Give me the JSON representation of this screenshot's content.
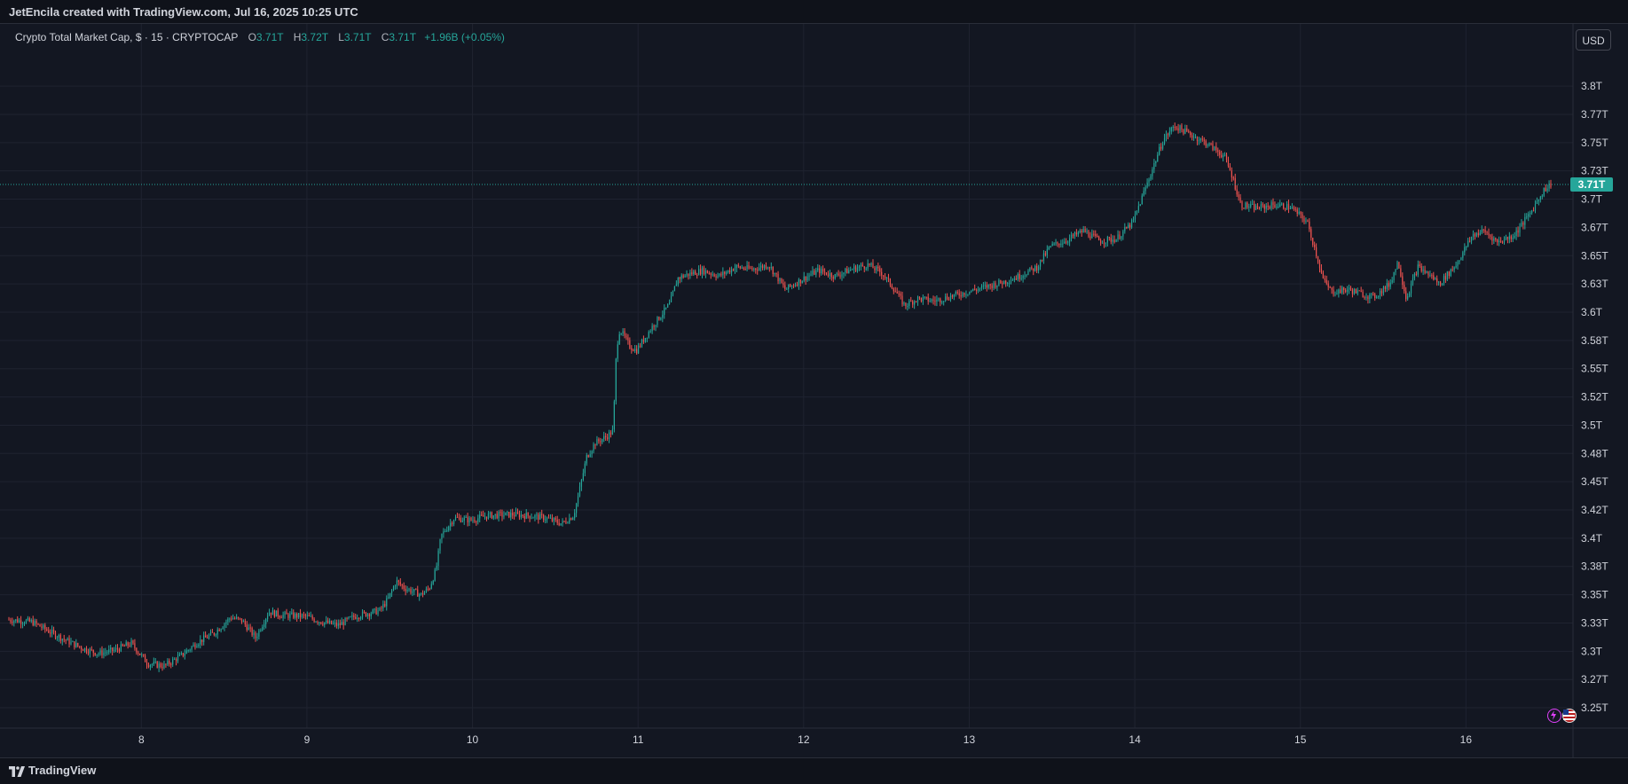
{
  "header": {
    "attribution": "JetEncila created with TradingView.com, Jul 16, 2025 10:25 UTC"
  },
  "legend": {
    "title": "Crypto Total Market Cap, $ · 15 · CRYPTOCAP",
    "open_label": "O",
    "open_value": "3.71T",
    "high_label": "H",
    "high_value": "3.72T",
    "low_label": "L",
    "low_value": "3.71T",
    "close_label": "C",
    "close_value": "3.71T",
    "change": "+1.96B (+0.05%)"
  },
  "currency_button": "USD",
  "last_price_label": "3.71T",
  "footer": {
    "brand": "TradingView"
  },
  "icons": {
    "brand_logo": "tradingview-logo-icon",
    "lightning": "lightning-icon",
    "flag": "us-flag-icon"
  },
  "colors": {
    "up": "#26a69a",
    "down": "#ef5350",
    "background": "#131722",
    "grid": "#232733",
    "last_price_line": "#26a69a"
  },
  "chart_data": {
    "type": "candlestick",
    "interval": "15",
    "symbol": "CRYPTOCAP",
    "y_tick_labels": [
      "3.8T",
      "3.77T",
      "3.75T",
      "3.73T",
      "3.7T",
      "3.67T",
      "3.65T",
      "3.63T",
      "3.6T",
      "3.58T",
      "3.55T",
      "3.52T",
      "3.5T",
      "3.48T",
      "3.45T",
      "3.42T",
      "3.4T",
      "3.38T",
      "3.35T",
      "3.33T",
      "3.3T",
      "3.27T",
      "3.25T"
    ],
    "y_tick_values": [
      3.8,
      3.775,
      3.75,
      3.725,
      3.7,
      3.675,
      3.65,
      3.625,
      3.6,
      3.575,
      3.55,
      3.525,
      3.5,
      3.475,
      3.45,
      3.425,
      3.4,
      3.375,
      3.35,
      3.325,
      3.3,
      3.275,
      3.25
    ],
    "x_tick_labels": [
      "8",
      "9",
      "10",
      "11",
      "12",
      "13",
      "14",
      "15",
      "16"
    ],
    "x_tick_days": [
      8,
      9,
      10,
      11,
      12,
      13,
      14,
      15,
      16
    ],
    "x_range_days": [
      7.2,
      16.55
    ],
    "y_range": [
      3.232,
      3.855
    ],
    "last_price": 3.713,
    "price_path_trillions": [
      [
        7.2,
        3.328
      ],
      [
        7.35,
        3.326
      ],
      [
        7.45,
        3.318
      ],
      [
        7.55,
        3.31
      ],
      [
        7.65,
        3.303
      ],
      [
        7.75,
        3.298
      ],
      [
        7.85,
        3.301
      ],
      [
        7.95,
        3.307
      ],
      [
        8.05,
        3.289
      ],
      [
        8.15,
        3.287
      ],
      [
        8.25,
        3.296
      ],
      [
        8.35,
        3.308
      ],
      [
        8.45,
        3.316
      ],
      [
        8.55,
        3.33
      ],
      [
        8.62,
        3.327
      ],
      [
        8.7,
        3.312
      ],
      [
        8.78,
        3.335
      ],
      [
        8.85,
        3.332
      ],
      [
        9.0,
        3.331
      ],
      [
        9.1,
        3.326
      ],
      [
        9.2,
        3.323
      ],
      [
        9.3,
        3.331
      ],
      [
        9.45,
        3.336
      ],
      [
        9.5,
        3.346
      ],
      [
        9.55,
        3.362
      ],
      [
        9.6,
        3.356
      ],
      [
        9.7,
        3.35
      ],
      [
        9.75,
        3.356
      ],
      [
        9.79,
        3.372
      ],
      [
        9.82,
        3.402
      ],
      [
        9.9,
        3.418
      ],
      [
        10.0,
        3.416
      ],
      [
        10.1,
        3.42
      ],
      [
        10.25,
        3.421
      ],
      [
        10.35,
        3.42
      ],
      [
        10.45,
        3.418
      ],
      [
        10.55,
        3.413
      ],
      [
        10.62,
        3.42
      ],
      [
        10.65,
        3.438
      ],
      [
        10.7,
        3.472
      ],
      [
        10.75,
        3.484
      ],
      [
        10.82,
        3.49
      ],
      [
        10.86,
        3.495
      ],
      [
        10.88,
        3.568
      ],
      [
        10.9,
        3.585
      ],
      [
        10.96,
        3.57
      ],
      [
        11.0,
        3.566
      ],
      [
        11.1,
        3.588
      ],
      [
        11.2,
        3.607
      ],
      [
        11.25,
        3.63
      ],
      [
        11.3,
        3.633
      ],
      [
        11.4,
        3.637
      ],
      [
        11.5,
        3.632
      ],
      [
        11.6,
        3.64
      ],
      [
        11.7,
        3.638
      ],
      [
        11.8,
        3.642
      ],
      [
        11.9,
        3.62
      ],
      [
        12.0,
        3.629
      ],
      [
        12.1,
        3.637
      ],
      [
        12.2,
        3.632
      ],
      [
        12.3,
        3.638
      ],
      [
        12.4,
        3.642
      ],
      [
        12.48,
        3.635
      ],
      [
        12.55,
        3.622
      ],
      [
        12.62,
        3.606
      ],
      [
        12.7,
        3.612
      ],
      [
        12.8,
        3.61
      ],
      [
        12.9,
        3.614
      ],
      [
        13.0,
        3.618
      ],
      [
        13.1,
        3.622
      ],
      [
        13.2,
        3.626
      ],
      [
        13.3,
        3.631
      ],
      [
        13.42,
        3.64
      ],
      [
        13.5,
        3.658
      ],
      [
        13.6,
        3.664
      ],
      [
        13.7,
        3.672
      ],
      [
        13.8,
        3.663
      ],
      [
        13.9,
        3.665
      ],
      [
        14.0,
        3.68
      ],
      [
        14.1,
        3.72
      ],
      [
        14.18,
        3.752
      ],
      [
        14.25,
        3.765
      ],
      [
        14.35,
        3.757
      ],
      [
        14.45,
        3.749
      ],
      [
        14.55,
        3.738
      ],
      [
        14.6,
        3.72
      ],
      [
        14.65,
        3.695
      ],
      [
        14.75,
        3.692
      ],
      [
        14.85,
        3.695
      ],
      [
        14.95,
        3.693
      ],
      [
        15.05,
        3.68
      ],
      [
        15.1,
        3.655
      ],
      [
        15.15,
        3.628
      ],
      [
        15.2,
        3.618
      ],
      [
        15.3,
        3.62
      ],
      [
        15.45,
        3.613
      ],
      [
        15.55,
        3.625
      ],
      [
        15.6,
        3.645
      ],
      [
        15.65,
        3.612
      ],
      [
        15.72,
        3.64
      ],
      [
        15.8,
        3.632
      ],
      [
        15.85,
        3.625
      ],
      [
        15.95,
        3.642
      ],
      [
        16.05,
        3.668
      ],
      [
        16.12,
        3.672
      ],
      [
        16.2,
        3.662
      ],
      [
        16.3,
        3.668
      ],
      [
        16.4,
        3.688
      ],
      [
        16.48,
        3.708
      ],
      [
        16.52,
        3.713
      ]
    ]
  }
}
